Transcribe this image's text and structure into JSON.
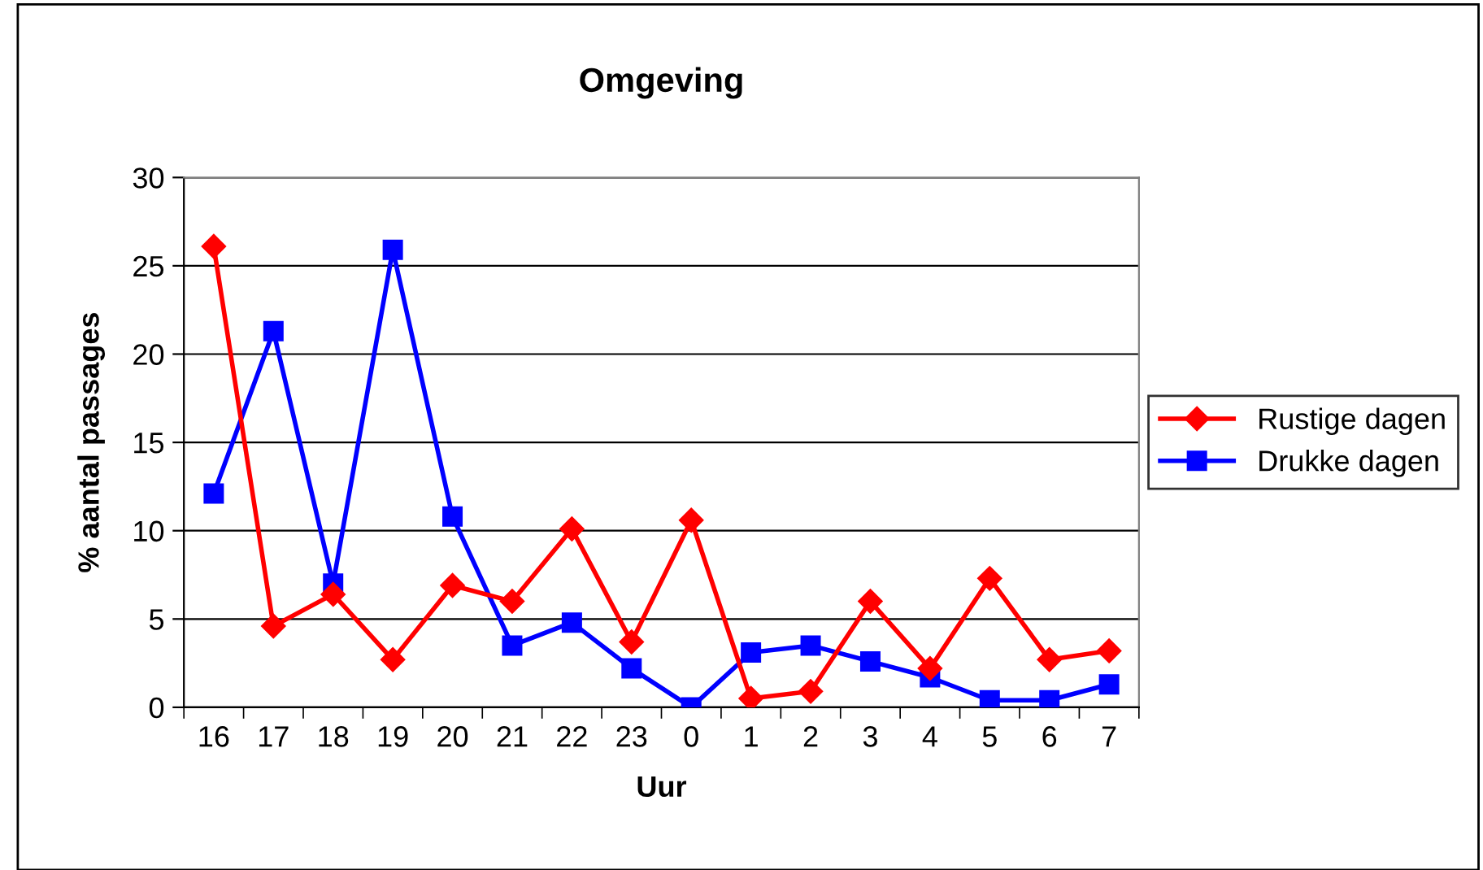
{
  "chart_data": {
    "type": "line",
    "title": "Omgeving",
    "xlabel": "Uur",
    "ylabel": "% aantal passages",
    "categories": [
      "16",
      "17",
      "18",
      "19",
      "20",
      "21",
      "22",
      "23",
      "0",
      "1",
      "2",
      "3",
      "4",
      "5",
      "6",
      "7"
    ],
    "series": [
      {
        "name": "Rustige dagen",
        "color": "#ff0000",
        "marker": "diamond",
        "values": [
          26.1,
          4.6,
          6.4,
          2.7,
          6.9,
          6.0,
          10.1,
          3.7,
          10.6,
          0.5,
          0.9,
          6.0,
          2.2,
          7.3,
          2.7,
          3.2
        ]
      },
      {
        "name": "Drukke dagen",
        "color": "#0000ff",
        "marker": "square",
        "values": [
          12.1,
          21.3,
          7.0,
          25.9,
          10.8,
          3.5,
          4.8,
          2.2,
          0,
          3.1,
          3.5,
          2.6,
          1.7,
          0.4,
          0.4,
          1.3
        ]
      }
    ],
    "ylim": [
      0,
      30
    ],
    "yticks": [
      0,
      5,
      10,
      15,
      20,
      25,
      30
    ],
    "grid": "y",
    "legend": "right",
    "line_style": "solid"
  }
}
